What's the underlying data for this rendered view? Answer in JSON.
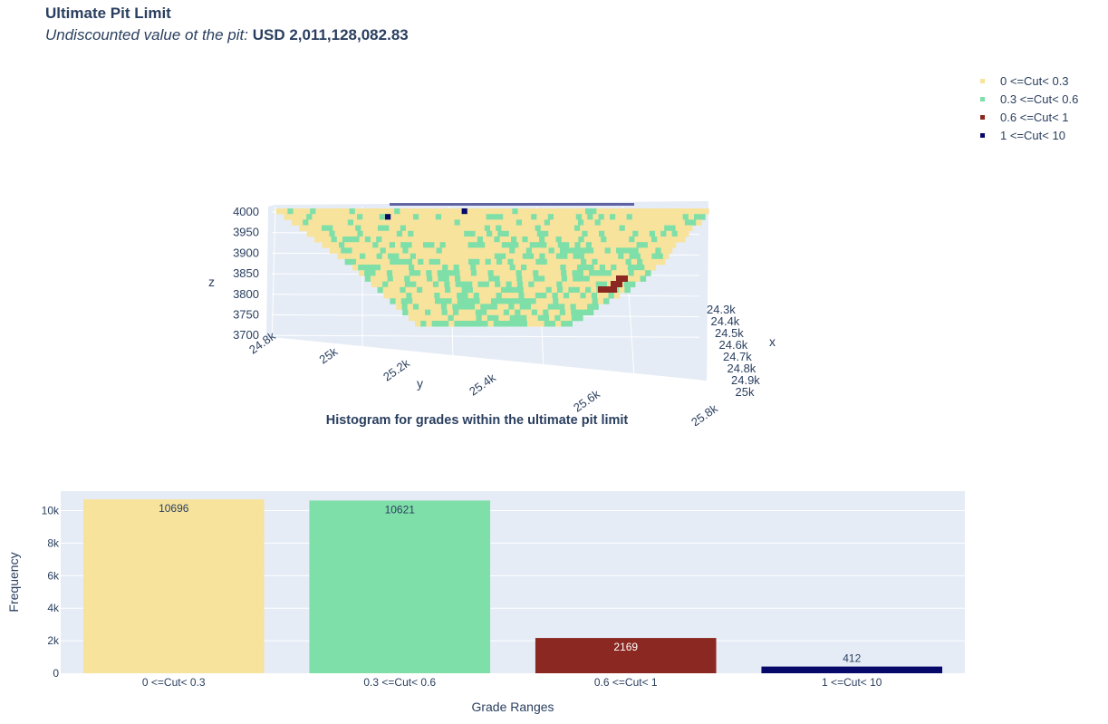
{
  "header": {
    "title": "Ultimate Pit Limit",
    "subtitle_label": "Undiscounted value ot the pit: ",
    "subtitle_value": "USD 2,011,128,082.83"
  },
  "colors": {
    "low": "#f7e39c",
    "mid": "#7fdfa8",
    "high": "#8b2821",
    "top": "#06096a"
  },
  "legend": {
    "items": [
      {
        "label": "0 <=Cut< 0.3",
        "color": "#f7e39c"
      },
      {
        "label": "0.3 <=Cut< 0.6",
        "color": "#7fdfa8"
      },
      {
        "label": "0.6 <=Cut< 1",
        "color": "#8b2821"
      },
      {
        "label": "1 <=Cut< 10",
        "color": "#06096a"
      }
    ]
  },
  "chart_data": [
    {
      "type": "scatter3d",
      "axes": {
        "x": {
          "label": "x",
          "ticks": [
            "24.3k",
            "24.4k",
            "24.5k",
            "24.6k",
            "24.7k",
            "24.8k",
            "24.9k",
            "25k"
          ]
        },
        "y": {
          "label": "y",
          "ticks": [
            "24.8k",
            "25k",
            "25.2k",
            "25.4k",
            "25.6k",
            "25.8k"
          ]
        },
        "z": {
          "label": "z",
          "ticks": [
            "4000",
            "3950",
            "3900",
            "3850",
            "3800",
            "3750",
            "3700"
          ]
        }
      }
    },
    {
      "type": "bar",
      "title": "Histogram for grades within the ultimate pit limit",
      "xlabel": "Grade Ranges",
      "ylabel": "Frequency",
      "categories": [
        "0 <=Cut< 0.3",
        "0.3 <=Cut< 0.6",
        "0.6 <=Cut< 1",
        "1 <=Cut< 10"
      ],
      "values": [
        10696,
        10621,
        2169,
        412
      ],
      "colors": [
        "#f7e39c",
        "#7fdfa8",
        "#8b2821",
        "#06096a"
      ],
      "ylim": [
        0,
        11200
      ],
      "yticks": [
        0,
        2000,
        4000,
        6000,
        8000,
        10000
      ],
      "ytick_labels": [
        "0",
        "2k",
        "4k",
        "6k",
        "8k",
        "10k"
      ],
      "grid": true
    }
  ]
}
